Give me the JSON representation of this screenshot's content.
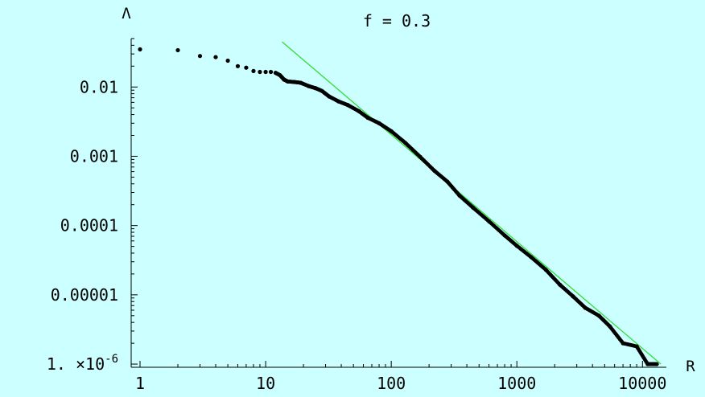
{
  "chart_data": {
    "type": "scatter",
    "title": "f = 0.3",
    "xlabel": "R",
    "ylabel": "Λ",
    "x_scale": "log",
    "y_scale": "log",
    "xlim": [
      0.85,
      15500
    ],
    "ylim": [
      9e-07,
      0.05
    ],
    "grid": false,
    "legend": "none",
    "x_ticks": [
      {
        "value": 1,
        "label": "1"
      },
      {
        "value": 10,
        "label": "10"
      },
      {
        "value": 100,
        "label": "100"
      },
      {
        "value": 1000,
        "label": "1000"
      },
      {
        "value": 10000,
        "label": "10000"
      }
    ],
    "y_ticks": [
      {
        "value": 0.01,
        "label": "0.01"
      },
      {
        "value": 0.001,
        "label": "0.001"
      },
      {
        "value": 0.0001,
        "label": "0.0001"
      },
      {
        "value": 1e-05,
        "label": "0.00001"
      },
      {
        "value": 1e-06,
        "label_prefix": "1. ×10",
        "label_exp": "-6"
      }
    ],
    "series": [
      {
        "kind": "points",
        "color": "#000000",
        "points": [
          [
            1,
            0.035
          ],
          [
            2,
            0.034
          ],
          [
            3,
            0.028
          ],
          [
            4,
            0.027
          ],
          [
            5,
            0.024
          ],
          [
            6,
            0.02
          ],
          [
            7,
            0.019
          ],
          [
            8,
            0.017
          ],
          [
            9,
            0.0165
          ],
          [
            10,
            0.0165
          ],
          [
            11,
            0.0165
          ],
          [
            12,
            0.016
          ],
          [
            13,
            0.0148
          ],
          [
            14,
            0.0128
          ],
          [
            15,
            0.012
          ],
          [
            17,
            0.0118
          ],
          [
            19,
            0.0115
          ],
          [
            22,
            0.0103
          ],
          [
            25,
            0.0096
          ],
          [
            28,
            0.0088
          ],
          [
            32,
            0.0073
          ],
          [
            38,
            0.0062
          ],
          [
            45,
            0.0055
          ],
          [
            55,
            0.0045
          ],
          [
            65,
            0.0036
          ],
          [
            80,
            0.003
          ],
          [
            100,
            0.0023
          ],
          [
            130,
            0.00155
          ],
          [
            170,
            0.00098
          ],
          [
            220,
            0.00062
          ],
          [
            280,
            0.00043
          ],
          [
            350,
            0.00027
          ],
          [
            450,
            0.00018
          ],
          [
            600,
            0.000115
          ],
          [
            800,
            7.2e-05
          ],
          [
            1000,
            5.1e-05
          ],
          [
            1300,
            3.5e-05
          ],
          [
            1700,
            2.3e-05
          ],
          [
            2200,
            1.4e-05
          ],
          [
            2800,
            9.5e-06
          ],
          [
            3500,
            6.5e-06
          ],
          [
            4500,
            5e-06
          ],
          [
            5500,
            3.5e-06
          ],
          [
            7000,
            2e-06
          ],
          [
            9000,
            1.8e-06
          ],
          [
            11000,
            1e-06
          ],
          [
            13000,
            1e-06
          ]
        ]
      },
      {
        "kind": "line",
        "color": "#33dd33",
        "points": [
          [
            13.5,
            0.045
          ],
          [
            14000,
            1e-06
          ]
        ]
      }
    ]
  }
}
